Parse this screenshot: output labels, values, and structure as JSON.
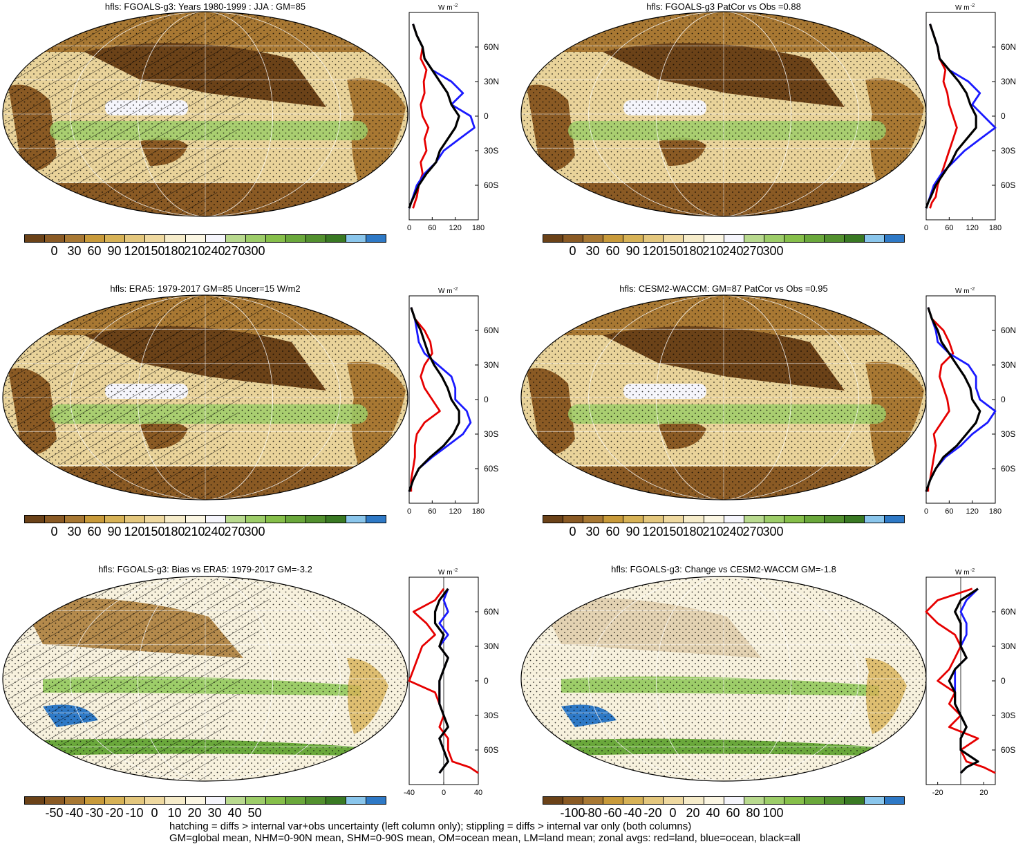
{
  "colors": {
    "abs_scale": [
      "#6b4218",
      "#8a5a24",
      "#a87833",
      "#c89a3a",
      "#d7b256",
      "#e4c77d",
      "#efd9a0",
      "#f6ecca",
      "#fbf6e3",
      "#f5f5fb",
      "#b9da8f",
      "#9dcd69",
      "#86bf4a",
      "#6aa83b",
      "#52902e",
      "#397923",
      "#8ac6ec",
      "#2e79c6"
    ],
    "diff_scale": [
      "#6b4218",
      "#8a5a24",
      "#a87833",
      "#c89a3a",
      "#d7b256",
      "#e4c77d",
      "#efd9a0",
      "#f6ecca",
      "#fbf6e3",
      "#f5f5fb",
      "#b9da8f",
      "#9dcd69",
      "#86bf4a",
      "#6aa83b",
      "#52902e",
      "#397923",
      "#8ac6ec",
      "#2e79c6"
    ],
    "land": "#e60000",
    "ocean": "#1a1aff",
    "all": "#000000"
  },
  "panels": [
    {
      "title": "hfls: FGOALS-g3: Years 1980-1999 : JJA : GM=85",
      "scale": "abs",
      "hatched": true,
      "cbar_labels": [
        "0",
        "30",
        "60",
        "90",
        "120",
        "150",
        "180",
        "210",
        "240",
        "270",
        "300"
      ],
      "zonal_units": "W m",
      "zonal_xticks": [
        "0",
        "60",
        "120",
        "180"
      ],
      "zonal_lat": [
        "60N",
        "30N",
        "0",
        "30S",
        "60S"
      ],
      "chart_data": {
        "type": "line",
        "xlabel": "W m-2",
        "xlim": [
          0,
          180
        ],
        "series": [
          {
            "name": "land",
            "x": [
              10,
              20,
              35,
              30,
              45,
              38,
              40,
              30,
              35,
              50,
              40,
              45,
              30,
              35,
              25,
              20,
              15,
              10
            ],
            "y": [
              80,
              70,
              60,
              50,
              40,
              30,
              20,
              10,
              0,
              -10,
              -20,
              -30,
              -40,
              -50,
              -60,
              -70,
              -75,
              -80
            ]
          },
          {
            "name": "ocean",
            "x": [
              10,
              20,
              35,
              40,
              60,
              110,
              140,
              110,
              160,
              170,
              130,
              90,
              70,
              40,
              20,
              10,
              5,
              0
            ],
            "y": [
              80,
              70,
              60,
              50,
              40,
              30,
              20,
              10,
              0,
              -10,
              -20,
              -30,
              -40,
              -50,
              -60,
              -70,
              -75,
              -80
            ]
          },
          {
            "name": "all",
            "x": [
              10,
              20,
              35,
              40,
              60,
              80,
              100,
              110,
              130,
              120,
              100,
              80,
              70,
              45,
              25,
              12,
              5,
              0
            ],
            "y": [
              80,
              70,
              60,
              50,
              40,
              30,
              20,
              10,
              0,
              -10,
              -20,
              -30,
              -40,
              -50,
              -60,
              -70,
              -75,
              -80
            ]
          }
        ]
      }
    },
    {
      "title": "hfls: FGOALS-g3 PatCor vs Obs =0.88",
      "scale": "abs",
      "hatched": false,
      "cbar_labels": [
        "0",
        "30",
        "60",
        "90",
        "120",
        "150",
        "180",
        "210",
        "240",
        "270",
        "300"
      ],
      "zonal_units": "W m",
      "zonal_xticks": [
        "0",
        "60",
        "120",
        "180"
      ],
      "zonal_lat": [
        "60N",
        "30N",
        "0",
        "30S",
        "60S"
      ],
      "chart_data": {
        "type": "line",
        "xlabel": "W m-2",
        "xlim": [
          0,
          180
        ],
        "series": [
          {
            "name": "land",
            "x": [
              10,
              20,
              30,
              35,
              50,
              45,
              55,
              60,
              70,
              80,
              70,
              60,
              50,
              40,
              30,
              25,
              15,
              10
            ],
            "y": [
              80,
              70,
              60,
              50,
              40,
              30,
              20,
              10,
              0,
              -10,
              -20,
              -30,
              -40,
              -50,
              -60,
              -70,
              -75,
              -80
            ]
          },
          {
            "name": "ocean",
            "x": [
              10,
              20,
              30,
              35,
              60,
              110,
              140,
              120,
              150,
              180,
              140,
              100,
              70,
              40,
              20,
              10,
              5,
              0
            ],
            "y": [
              80,
              70,
              60,
              50,
              40,
              30,
              20,
              10,
              0,
              -10,
              -20,
              -30,
              -40,
              -50,
              -60,
              -70,
              -75,
              -80
            ]
          },
          {
            "name": "all",
            "x": [
              10,
              20,
              30,
              35,
              60,
              85,
              105,
              115,
              130,
              130,
              105,
              80,
              65,
              45,
              25,
              12,
              5,
              0
            ],
            "y": [
              80,
              70,
              60,
              50,
              40,
              30,
              20,
              10,
              0,
              -10,
              -20,
              -30,
              -40,
              -50,
              -60,
              -70,
              -75,
              -80
            ]
          }
        ]
      }
    },
    {
      "title": "hfls: ERA5: 1979-2017 GM=85 Uncer=15 W/m2",
      "scale": "abs",
      "hatched": true,
      "cbar_labels": [
        "0",
        "30",
        "60",
        "90",
        "120",
        "150",
        "180",
        "210",
        "240",
        "270",
        "300"
      ],
      "zonal_units": "W m",
      "zonal_xticks": [
        "0",
        "60",
        "120",
        "180"
      ],
      "zonal_lat": [
        "60N",
        "30N",
        "0",
        "30S",
        "60S"
      ],
      "chart_data": {
        "type": "line",
        "xlabel": "W m-2",
        "xlim": [
          0,
          180
        ],
        "series": [
          {
            "name": "land",
            "x": [
              5,
              15,
              40,
              55,
              60,
              40,
              30,
              40,
              60,
              80,
              40,
              20,
              15,
              15,
              10,
              5,
              5,
              5
            ],
            "y": [
              80,
              70,
              60,
              50,
              40,
              30,
              20,
              10,
              0,
              -10,
              -20,
              -30,
              -40,
              -50,
              -60,
              -70,
              -75,
              -80
            ]
          },
          {
            "name": "ocean",
            "x": [
              5,
              15,
              20,
              25,
              40,
              75,
              110,
              120,
              120,
              150,
              160,
              140,
              100,
              60,
              25,
              10,
              5,
              0
            ],
            "y": [
              80,
              70,
              60,
              50,
              40,
              30,
              20,
              10,
              0,
              -10,
              -20,
              -30,
              -40,
              -50,
              -60,
              -70,
              -75,
              -80
            ]
          },
          {
            "name": "all",
            "x": [
              5,
              15,
              30,
              40,
              50,
              65,
              85,
              100,
              110,
              130,
              130,
              115,
              90,
              55,
              25,
              10,
              5,
              0
            ],
            "y": [
              80,
              70,
              60,
              50,
              40,
              30,
              20,
              10,
              0,
              -10,
              -20,
              -30,
              -40,
              -50,
              -60,
              -70,
              -75,
              -80
            ]
          }
        ]
      }
    },
    {
      "title": "hfls: CESM2-WACCM: GM=87 PatCor vs Obs =0.95",
      "scale": "abs",
      "hatched": false,
      "cbar_labels": [
        "0",
        "30",
        "60",
        "90",
        "120",
        "150",
        "180",
        "210",
        "240",
        "270",
        "300"
      ],
      "zonal_units": "W m",
      "zonal_xticks": [
        "0",
        "60",
        "120",
        "180"
      ],
      "zonal_lat": [
        "60N",
        "30N",
        "0",
        "30S",
        "60S"
      ],
      "chart_data": {
        "type": "line",
        "xlabel": "W m-2",
        "xlim": [
          0,
          180
        ],
        "series": [
          {
            "name": "land",
            "x": [
              5,
              15,
              45,
              60,
              70,
              40,
              35,
              45,
              55,
              60,
              40,
              20,
              25,
              20,
              15,
              10,
              5,
              5
            ],
            "y": [
              80,
              70,
              60,
              50,
              40,
              30,
              20,
              10,
              0,
              -10,
              -20,
              -30,
              -40,
              -50,
              -60,
              -70,
              -75,
              -80
            ]
          },
          {
            "name": "ocean",
            "x": [
              5,
              15,
              25,
              30,
              60,
              110,
              130,
              130,
              140,
              180,
              160,
              120,
              90,
              50,
              25,
              10,
              5,
              0
            ],
            "y": [
              80,
              70,
              60,
              50,
              40,
              30,
              20,
              10,
              0,
              -10,
              -20,
              -30,
              -40,
              -50,
              -60,
              -70,
              -75,
              -80
            ]
          },
          {
            "name": "all",
            "x": [
              5,
              15,
              30,
              40,
              60,
              80,
              100,
              115,
              120,
              140,
              130,
              105,
              80,
              45,
              25,
              10,
              5,
              0
            ],
            "y": [
              80,
              70,
              60,
              50,
              40,
              30,
              20,
              10,
              0,
              -10,
              -20,
              -30,
              -40,
              -50,
              -60,
              -70,
              -75,
              -80
            ]
          }
        ]
      }
    },
    {
      "title": "hfls: FGOALS-g3: Bias vs ERA5: 1979-2017 GM=-3.2",
      "scale": "diff",
      "hatched": true,
      "cbar_labels": [
        "-50",
        "-40",
        "-30",
        "-20",
        "-10",
        "0",
        "10",
        "20",
        "30",
        "40",
        "50"
      ],
      "zonal_units": "W m",
      "zonal_xticks": [
        "-40",
        "0",
        "40"
      ],
      "zonal_lat": [
        "60N",
        "30N",
        "0",
        "30S",
        "60S"
      ],
      "chart_data": {
        "type": "line",
        "xlabel": "W m-2",
        "xlim": [
          -40,
          40
        ],
        "series": [
          {
            "name": "land",
            "x": [
              0,
              -10,
              -35,
              -20,
              -10,
              -25,
              -30,
              -35,
              -40,
              -10,
              -5,
              0,
              -5,
              5,
              5,
              10,
              30,
              40
            ],
            "y": [
              80,
              70,
              60,
              50,
              40,
              30,
              20,
              10,
              0,
              -10,
              -20,
              -30,
              -40,
              -50,
              -60,
              -70,
              -75,
              -80
            ]
          },
          {
            "name": "ocean",
            "x": [
              5,
              0,
              5,
              -5,
              5,
              -5,
              5,
              0,
              -5,
              -5,
              -5,
              0,
              5,
              -5,
              0,
              5,
              0,
              -5
            ],
            "y": [
              80,
              70,
              60,
              50,
              40,
              30,
              20,
              10,
              0,
              -10,
              -20,
              -30,
              -40,
              -50,
              -60,
              -70,
              -75,
              -80
            ]
          },
          {
            "name": "all",
            "x": [
              5,
              -5,
              -10,
              -10,
              0,
              -5,
              5,
              0,
              -5,
              -5,
              -5,
              0,
              5,
              -5,
              0,
              5,
              0,
              -5
            ],
            "y": [
              80,
              70,
              60,
              50,
              40,
              30,
              20,
              10,
              0,
              -10,
              -20,
              -30,
              -40,
              -50,
              -60,
              -70,
              -75,
              -80
            ]
          }
        ]
      }
    },
    {
      "title": "hfls: FGOALS-g3: Change vs CESM2-WACCM GM=-1.8",
      "scale": "diff2",
      "hatched": false,
      "cbar_labels": [
        "-100",
        "-80",
        "-60",
        "-40",
        "-20",
        "0",
        "20",
        "40",
        "60",
        "80",
        "100"
      ],
      "zonal_units": "W m",
      "zonal_xticks": [
        "-20",
        "20"
      ],
      "zonal_lat": [
        "60N",
        "30N",
        "0",
        "30S",
        "60S"
      ],
      "chart_data": {
        "type": "line",
        "xlabel": "W m-2",
        "xlim": [
          -30,
          30
        ],
        "series": [
          {
            "name": "land",
            "x": [
              10,
              -20,
              -30,
              -20,
              -5,
              0,
              -5,
              -10,
              -20,
              -5,
              -10,
              0,
              -10,
              15,
              0,
              5,
              20,
              30
            ],
            "y": [
              80,
              70,
              60,
              50,
              40,
              30,
              20,
              10,
              0,
              -10,
              -20,
              -30,
              -40,
              -50,
              -60,
              -70,
              -75,
              -80
            ]
          },
          {
            "name": "ocean",
            "x": [
              15,
              5,
              0,
              5,
              5,
              0,
              5,
              -5,
              -5,
              -5,
              -5,
              0,
              5,
              0,
              0,
              15,
              5,
              0
            ],
            "y": [
              80,
              70,
              60,
              50,
              40,
              30,
              20,
              10,
              0,
              -10,
              -20,
              -30,
              -40,
              -50,
              -60,
              -70,
              -75,
              -80
            ]
          },
          {
            "name": "all",
            "x": [
              15,
              0,
              -5,
              0,
              0,
              0,
              5,
              -5,
              -10,
              -5,
              -5,
              0,
              5,
              0,
              0,
              15,
              5,
              0
            ],
            "y": [
              80,
              70,
              60,
              50,
              40,
              30,
              20,
              10,
              0,
              -10,
              -20,
              -30,
              -40,
              -50,
              -60,
              -70,
              -75,
              -80
            ]
          }
        ]
      }
    }
  ],
  "footnote": {
    "line1": "hatching = diffs > internal var+obs uncertainty (left column only); stippling = diffs > internal var only (both columns)",
    "line2": "GM=global mean, NHM=0-90N mean, SHM=0-90S mean, OM=ocean mean, LM=land mean; zonal avgs: red=land, blue=ocean, black=all"
  }
}
